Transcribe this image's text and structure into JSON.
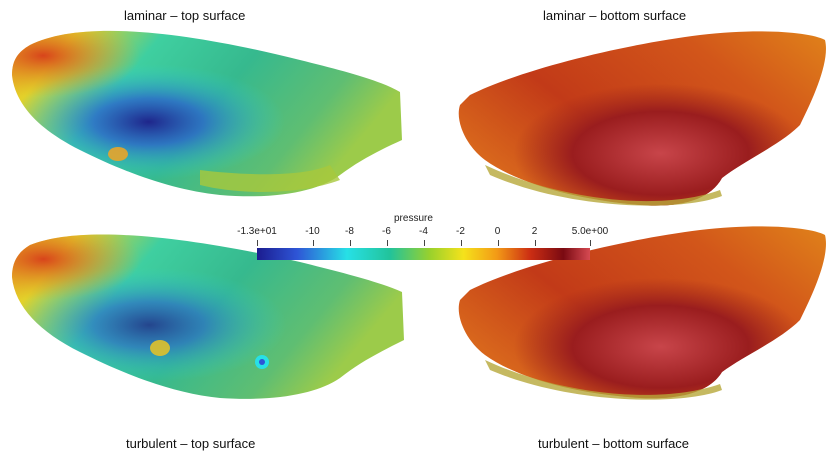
{
  "panels": [
    {
      "title": "laminar – top surface"
    },
    {
      "title": "laminar – bottom surface"
    },
    {
      "title": "turbulent – top surface"
    },
    {
      "title": "turbulent – bottom surface"
    }
  ],
  "colorbar": {
    "title": "pressure",
    "min": -13,
    "max": 5,
    "ticks": [
      "-1.3e+01",
      "-10",
      "-8",
      "-6",
      "-4",
      "-2",
      "0",
      "2",
      "5.0e+00"
    ],
    "tick_values": [
      -13,
      -10,
      -8,
      -6,
      -4,
      -2,
      0,
      2,
      5
    ],
    "colormap": [
      "#1b1c8f",
      "#2e55d6",
      "#27e0e6",
      "#22c39a",
      "#9ad12c",
      "#f5e21b",
      "#f39a16",
      "#cc2e13",
      "#7a0a12",
      "#d64a52"
    ]
  }
}
